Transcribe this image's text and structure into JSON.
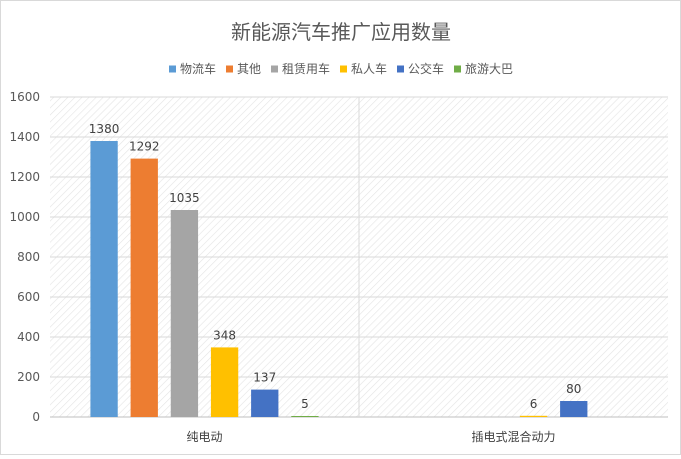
{
  "chart_data": {
    "type": "bar",
    "title": "新能源汽车推广应用数量",
    "xlabel": "",
    "ylabel": "",
    "categories": [
      "纯电动",
      "插电式混合动力"
    ],
    "series": [
      {
        "name": "物流车",
        "color": "#5b9bd5",
        "values": [
          1380,
          0
        ]
      },
      {
        "name": "其他",
        "color": "#ed7d31",
        "values": [
          1292,
          0
        ]
      },
      {
        "name": "租赁用车",
        "color": "#a5a5a5",
        "values": [
          1035,
          0
        ]
      },
      {
        "name": "私人车",
        "color": "#ffc000",
        "values": [
          348,
          6
        ]
      },
      {
        "name": "公交车",
        "color": "#4472c4",
        "values": [
          137,
          80
        ]
      },
      {
        "name": "旅游大巴",
        "color": "#70ad47",
        "values": [
          5,
          0
        ]
      }
    ],
    "shown_labels": [
      [
        true,
        false
      ],
      [
        true,
        false
      ],
      [
        true,
        false
      ],
      [
        true,
        true
      ],
      [
        true,
        true
      ],
      [
        true,
        false
      ]
    ],
    "ylim": [
      0,
      1600
    ],
    "yticks": [
      0,
      200,
      400,
      600,
      800,
      1000,
      1200,
      1400,
      1600
    ],
    "grid": true,
    "legend_position": "top"
  }
}
